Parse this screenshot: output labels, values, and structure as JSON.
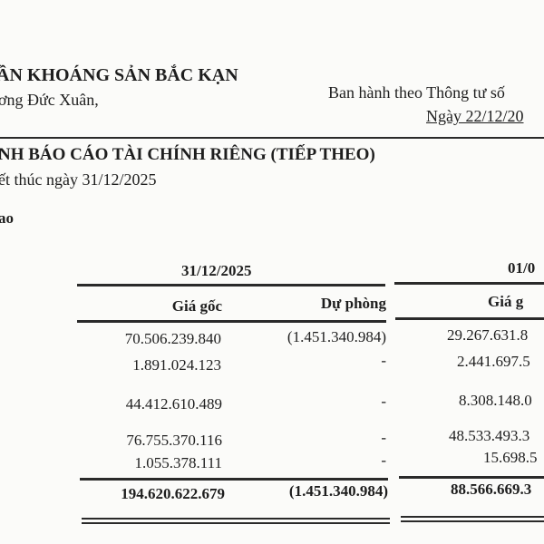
{
  "header": {
    "company": "ẦN KHOÁNG SẢN BẮC KẠN",
    "address": "ơng Đức Xuân,",
    "regulation": "Ban hành theo Thông tư số",
    "regulation_date": "Ngày 22/12/20"
  },
  "title": "NH BÁO CÁO TÀI CHÍNH RIÊNG (TIẾP THEO)",
  "period": "ết thúc ngày 31/12/2025",
  "section": "ao",
  "table": {
    "period1": "31/12/2025",
    "period2": "01/0",
    "col_cost": "Giá gốc",
    "col_provision": "Dự phòng",
    "col_cost2": "Giá g",
    "rows": [
      {
        "cost": "70.506.239.840",
        "provision": "(1.451.340.984)",
        "cost2": "29.267.631.8"
      },
      {
        "cost": "1.891.024.123",
        "provision": "-",
        "cost2": "2.441.697.5"
      },
      {
        "cost": "44.412.610.489",
        "provision": "-",
        "cost2": "8.308.148.0"
      },
      {
        "cost": "76.755.370.116",
        "provision": "-",
        "cost2": "48.533.493.3"
      },
      {
        "cost": "1.055.378.111",
        "provision": "-",
        "cost2": "15.698.5"
      }
    ],
    "total": {
      "cost": "194.620.622.679",
      "provision": "(1.451.340.984)",
      "cost2": "88.566.669.3"
    }
  }
}
